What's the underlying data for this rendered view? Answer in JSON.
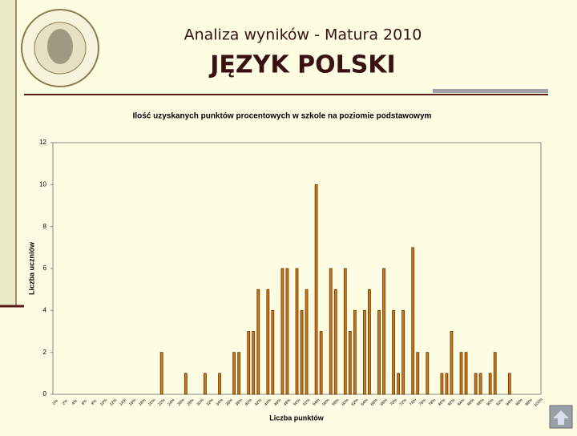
{
  "header": {
    "title": "Analiza wyników  - Matura 2010",
    "subtitle": "JĘZYK POLSKI"
  },
  "chart_data": {
    "type": "bar",
    "title": "Ilość uzyskanych punktów procentowych w szkole na poziomie podstawowym",
    "x_label": "Liczba punktów",
    "y_label": "Liczba uczniów",
    "categories": [
      "0%",
      null,
      "2%",
      null,
      "4%",
      null,
      "6%",
      null,
      "8%",
      null,
      "10%",
      null,
      "12%",
      null,
      "14%",
      null,
      "16%",
      null,
      "18%",
      null,
      "20%",
      null,
      "22%",
      null,
      "24%",
      null,
      "26%",
      null,
      "28%",
      null,
      "30%",
      null,
      "32%",
      null,
      "34%",
      null,
      "36%",
      null,
      "38%",
      null,
      "40%",
      null,
      "42%",
      null,
      "44%",
      null,
      "46%",
      null,
      "48%",
      null,
      "50%",
      null,
      "52%",
      null,
      "54%",
      null,
      "56%",
      null,
      "58%",
      null,
      "60%",
      null,
      "62%",
      null,
      "64%",
      null,
      "66%",
      null,
      "68%",
      null,
      "70%",
      null,
      "72%",
      null,
      "74%",
      null,
      "76%",
      null,
      "78%",
      null,
      "80%",
      null,
      "82%",
      null,
      "84%",
      null,
      "86%",
      null,
      "88%",
      null,
      "90%",
      null,
      "92%",
      null,
      "94%",
      null,
      "96%",
      null,
      "98%",
      null,
      "100%"
    ],
    "values": [
      0,
      0,
      0,
      0,
      0,
      0,
      0,
      0,
      0,
      0,
      0,
      0,
      0,
      0,
      0,
      0,
      0,
      0,
      0,
      0,
      0,
      0,
      2,
      0,
      0,
      0,
      0,
      1,
      0,
      0,
      0,
      1,
      0,
      0,
      1,
      0,
      0,
      2,
      2,
      0,
      3,
      3,
      5,
      0,
      5,
      4,
      0,
      6,
      6,
      0,
      6,
      4,
      5,
      0,
      10,
      3,
      0,
      6,
      5,
      0,
      6,
      3,
      4,
      0,
      4,
      5,
      0,
      4,
      6,
      0,
      4,
      1,
      4,
      0,
      7,
      2,
      0,
      2,
      0,
      0,
      1,
      1,
      3,
      0,
      2,
      2,
      0,
      1,
      1,
      0,
      1,
      2,
      0,
      0,
      1,
      0,
      0,
      0,
      0,
      0,
      0
    ],
    "color": "#c8781a",
    "ylim": [
      0,
      12
    ],
    "yticks": [
      0,
      2,
      4,
      6,
      8,
      10,
      12
    ],
    "grid": false
  }
}
